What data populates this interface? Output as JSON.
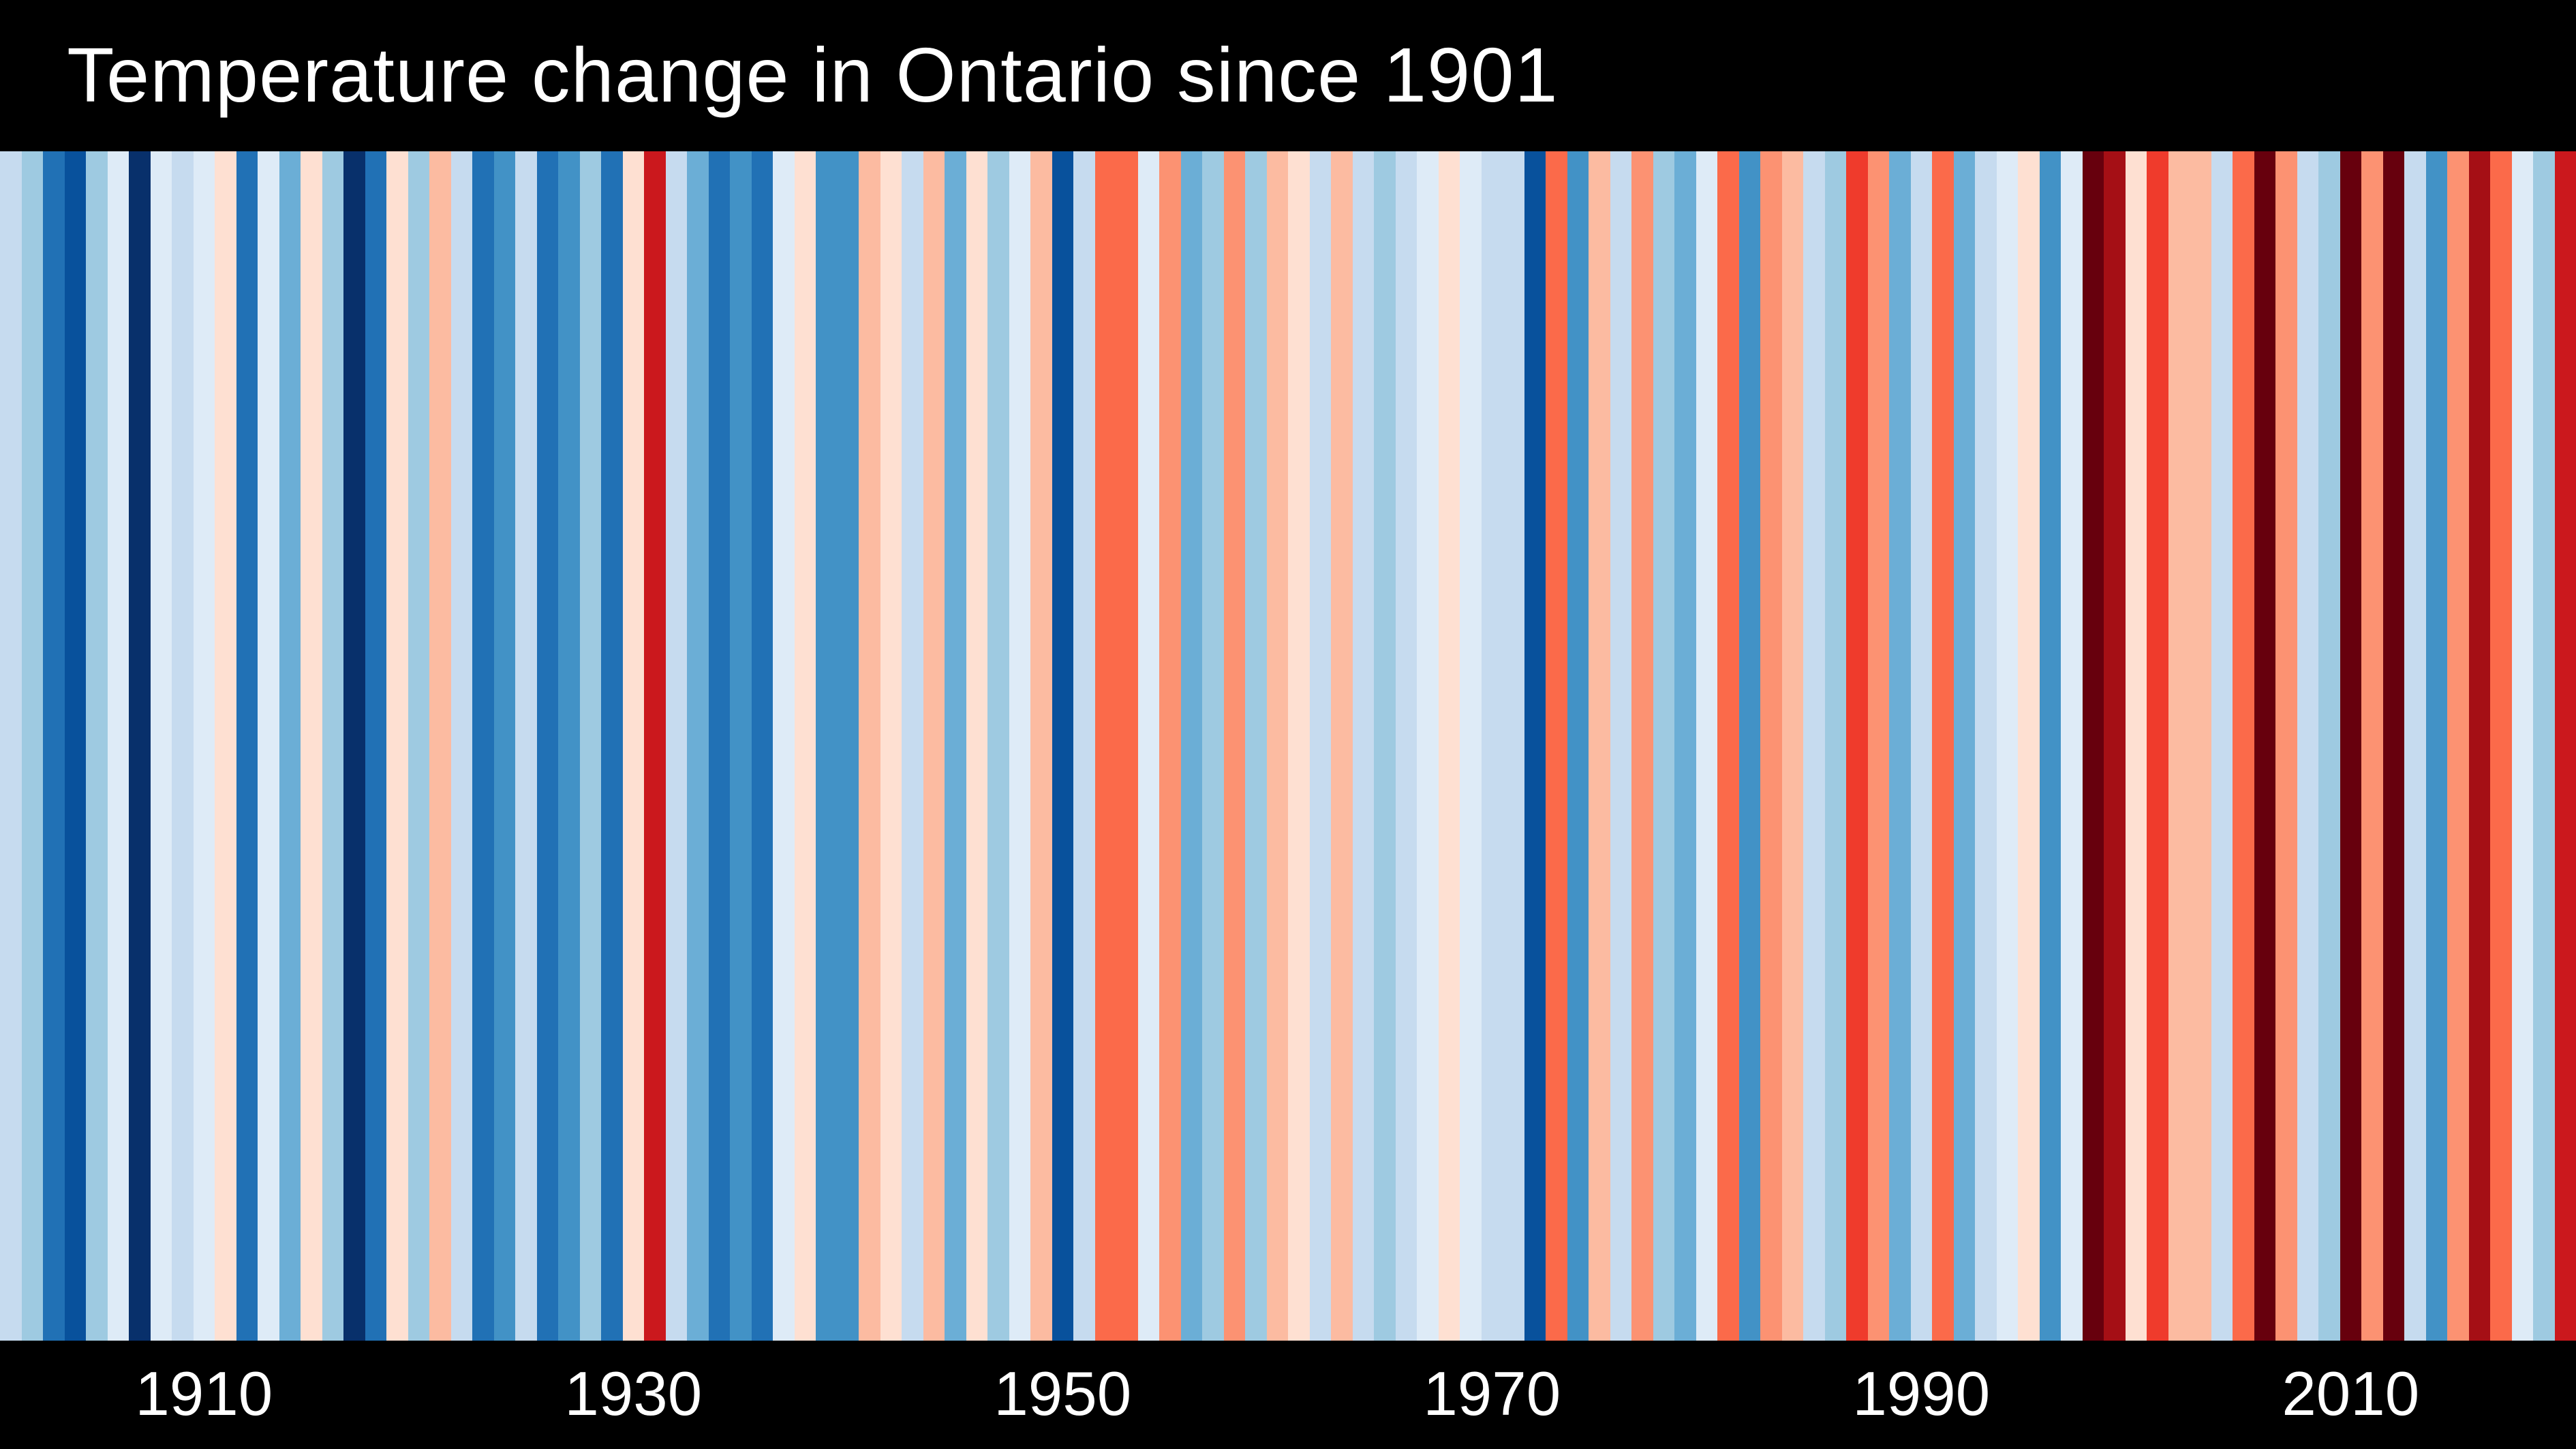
{
  "chart": {
    "type": "warming-stripes",
    "title": "Temperature change in Ontario since 1901",
    "title_color": "#ffffff",
    "title_fontsize_vw": 3.0,
    "background_color": "#000000",
    "stripe_area_flex": 1,
    "start_year": 1901,
    "end_year": 2020,
    "axis_ticks": [
      {
        "year": 1910,
        "label": "1910"
      },
      {
        "year": 1930,
        "label": "1930"
      },
      {
        "year": 1950,
        "label": "1950"
      },
      {
        "year": 1970,
        "label": "1970"
      },
      {
        "year": 1990,
        "label": "1990"
      },
      {
        "year": 2010,
        "label": "2010"
      }
    ],
    "axis_label_color": "#ffffff",
    "axis_label_fontsize_vw": 2.4,
    "palette": {
      "-8": "#08306b",
      "-7": "#08519c",
      "-6": "#2171b5",
      "-5": "#4292c6",
      "-4": "#6baed6",
      "-3": "#9ecae1",
      "-2": "#c6dbef",
      "-1": "#deebf7",
      "1": "#fee0d2",
      "2": "#fcbba1",
      "3": "#fc9272",
      "4": "#fb6a4a",
      "5": "#ef3b2c",
      "6": "#cb181d",
      "7": "#a50f15",
      "8": "#67000d"
    },
    "stripes": [
      {
        "year": 1901,
        "level": -2,
        "color": "#c6dbef"
      },
      {
        "year": 1902,
        "level": -3,
        "color": "#9ecae1"
      },
      {
        "year": 1903,
        "level": -6,
        "color": "#2171b5"
      },
      {
        "year": 1904,
        "level": -7,
        "color": "#08519c"
      },
      {
        "year": 1905,
        "level": -3,
        "color": "#9ecae1"
      },
      {
        "year": 1906,
        "level": -1,
        "color": "#deebf7"
      },
      {
        "year": 1907,
        "level": -8,
        "color": "#08306b"
      },
      {
        "year": 1908,
        "level": -1,
        "color": "#deebf7"
      },
      {
        "year": 1909,
        "level": -2,
        "color": "#c6dbef"
      },
      {
        "year": 1910,
        "level": -1,
        "color": "#deebf7"
      },
      {
        "year": 1911,
        "level": 1,
        "color": "#fee0d2"
      },
      {
        "year": 1912,
        "level": -6,
        "color": "#2171b5"
      },
      {
        "year": 1913,
        "level": -1,
        "color": "#deebf7"
      },
      {
        "year": 1914,
        "level": -4,
        "color": "#6baed6"
      },
      {
        "year": 1915,
        "level": 1,
        "color": "#fee0d2"
      },
      {
        "year": 1916,
        "level": -3,
        "color": "#9ecae1"
      },
      {
        "year": 1917,
        "level": -8,
        "color": "#08306b"
      },
      {
        "year": 1918,
        "level": -6,
        "color": "#2171b5"
      },
      {
        "year": 1919,
        "level": 1,
        "color": "#fee0d2"
      },
      {
        "year": 1920,
        "level": -3,
        "color": "#9ecae1"
      },
      {
        "year": 1921,
        "level": 2,
        "color": "#fcbba1"
      },
      {
        "year": 1922,
        "level": -2,
        "color": "#c6dbef"
      },
      {
        "year": 1923,
        "level": -6,
        "color": "#2171b5"
      },
      {
        "year": 1924,
        "level": -5,
        "color": "#4292c6"
      },
      {
        "year": 1925,
        "level": -2,
        "color": "#c6dbef"
      },
      {
        "year": 1926,
        "level": -6,
        "color": "#2171b5"
      },
      {
        "year": 1927,
        "level": -5,
        "color": "#4292c6"
      },
      {
        "year": 1928,
        "level": -3,
        "color": "#9ecae1"
      },
      {
        "year": 1929,
        "level": -6,
        "color": "#2171b5"
      },
      {
        "year": 1930,
        "level": 1,
        "color": "#fee0d2"
      },
      {
        "year": 1931,
        "level": 6,
        "color": "#cb181d"
      },
      {
        "year": 1932,
        "level": -2,
        "color": "#c6dbef"
      },
      {
        "year": 1933,
        "level": -4,
        "color": "#6baed6"
      },
      {
        "year": 1934,
        "level": -6,
        "color": "#2171b5"
      },
      {
        "year": 1935,
        "level": -5,
        "color": "#4292c6"
      },
      {
        "year": 1936,
        "level": -6,
        "color": "#2171b5"
      },
      {
        "year": 1937,
        "level": -1,
        "color": "#deebf7"
      },
      {
        "year": 1938,
        "level": 1,
        "color": "#fee0d2"
      },
      {
        "year": 1939,
        "level": -5,
        "color": "#4292c6"
      },
      {
        "year": 1940,
        "level": -5,
        "color": "#4292c6"
      },
      {
        "year": 1941,
        "level": 2,
        "color": "#fcbba1"
      },
      {
        "year": 1942,
        "level": 1,
        "color": "#fee0d2"
      },
      {
        "year": 1943,
        "level": -2,
        "color": "#c6dbef"
      },
      {
        "year": 1944,
        "level": 2,
        "color": "#fcbba1"
      },
      {
        "year": 1945,
        "level": -4,
        "color": "#6baed6"
      },
      {
        "year": 1946,
        "level": 1,
        "color": "#fee0d2"
      },
      {
        "year": 1947,
        "level": -3,
        "color": "#9ecae1"
      },
      {
        "year": 1948,
        "level": -1,
        "color": "#deebf7"
      },
      {
        "year": 1949,
        "level": 2,
        "color": "#fcbba1"
      },
      {
        "year": 1950,
        "level": -7,
        "color": "#08519c"
      },
      {
        "year": 1951,
        "level": -2,
        "color": "#c6dbef"
      },
      {
        "year": 1952,
        "level": 4,
        "color": "#fb6a4a"
      },
      {
        "year": 1953,
        "level": 4,
        "color": "#fb6a4a"
      },
      {
        "year": 1954,
        "level": -1,
        "color": "#deebf7"
      },
      {
        "year": 1955,
        "level": 3,
        "color": "#fc9272"
      },
      {
        "year": 1956,
        "level": -4,
        "color": "#6baed6"
      },
      {
        "year": 1957,
        "level": -3,
        "color": "#9ecae1"
      },
      {
        "year": 1958,
        "level": 3,
        "color": "#fc9272"
      },
      {
        "year": 1959,
        "level": -3,
        "color": "#9ecae1"
      },
      {
        "year": 1960,
        "level": 2,
        "color": "#fcbba1"
      },
      {
        "year": 1961,
        "level": 1,
        "color": "#fee0d2"
      },
      {
        "year": 1962,
        "level": -2,
        "color": "#c6dbef"
      },
      {
        "year": 1963,
        "level": 2,
        "color": "#fcbba1"
      },
      {
        "year": 1964,
        "level": -2,
        "color": "#c6dbef"
      },
      {
        "year": 1965,
        "level": -3,
        "color": "#9ecae1"
      },
      {
        "year": 1966,
        "level": -2,
        "color": "#c6dbef"
      },
      {
        "year": 1967,
        "level": -1,
        "color": "#deebf7"
      },
      {
        "year": 1968,
        "level": 1,
        "color": "#fee0d2"
      },
      {
        "year": 1969,
        "level": -1,
        "color": "#deebf7"
      },
      {
        "year": 1970,
        "level": -2,
        "color": "#c6dbef"
      },
      {
        "year": 1971,
        "level": -2,
        "color": "#c6dbef"
      },
      {
        "year": 1972,
        "level": -7,
        "color": "#08519c"
      },
      {
        "year": 1973,
        "level": 4,
        "color": "#fb6a4a"
      },
      {
        "year": 1974,
        "level": -5,
        "color": "#4292c6"
      },
      {
        "year": 1975,
        "level": 2,
        "color": "#fcbba1"
      },
      {
        "year": 1976,
        "level": -2,
        "color": "#c6dbef"
      },
      {
        "year": 1977,
        "level": 3,
        "color": "#fc9272"
      },
      {
        "year": 1978,
        "level": -3,
        "color": "#9ecae1"
      },
      {
        "year": 1979,
        "level": -4,
        "color": "#6baed6"
      },
      {
        "year": 1980,
        "level": -1,
        "color": "#deebf7"
      },
      {
        "year": 1981,
        "level": 4,
        "color": "#fb6a4a"
      },
      {
        "year": 1982,
        "level": -5,
        "color": "#4292c6"
      },
      {
        "year": 1983,
        "level": 3,
        "color": "#fc9272"
      },
      {
        "year": 1984,
        "level": 2,
        "color": "#fcbba1"
      },
      {
        "year": 1985,
        "level": -2,
        "color": "#c6dbef"
      },
      {
        "year": 1986,
        "level": -3,
        "color": "#9ecae1"
      },
      {
        "year": 1987,
        "level": 5,
        "color": "#ef3b2c"
      },
      {
        "year": 1988,
        "level": 3,
        "color": "#fc9272"
      },
      {
        "year": 1989,
        "level": -4,
        "color": "#6baed6"
      },
      {
        "year": 1990,
        "level": -2,
        "color": "#c6dbef"
      },
      {
        "year": 1991,
        "level": 4,
        "color": "#fb6a4a"
      },
      {
        "year": 1992,
        "level": -4,
        "color": "#6baed6"
      },
      {
        "year": 1993,
        "level": -2,
        "color": "#c6dbef"
      },
      {
        "year": 1994,
        "level": -1,
        "color": "#deebf7"
      },
      {
        "year": 1995,
        "level": 1,
        "color": "#fee0d2"
      },
      {
        "year": 1996,
        "level": -5,
        "color": "#4292c6"
      },
      {
        "year": 1997,
        "level": -1,
        "color": "#deebf7"
      },
      {
        "year": 1998,
        "level": 8,
        "color": "#67000d"
      },
      {
        "year": 1999,
        "level": 7,
        "color": "#a50f15"
      },
      {
        "year": 2000,
        "level": 1,
        "color": "#fee0d2"
      },
      {
        "year": 2001,
        "level": 5,
        "color": "#ef3b2c"
      },
      {
        "year": 2002,
        "level": 2,
        "color": "#fcbba1"
      },
      {
        "year": 2003,
        "level": 2,
        "color": "#fcbba1"
      },
      {
        "year": 2004,
        "level": -2,
        "color": "#c6dbef"
      },
      {
        "year": 2005,
        "level": 4,
        "color": "#fb6a4a"
      },
      {
        "year": 2006,
        "level": 8,
        "color": "#67000d"
      },
      {
        "year": 2007,
        "level": 3,
        "color": "#fc9272"
      },
      {
        "year": 2008,
        "level": -2,
        "color": "#c6dbef"
      },
      {
        "year": 2009,
        "level": -3,
        "color": "#9ecae1"
      },
      {
        "year": 2010,
        "level": 8,
        "color": "#67000d"
      },
      {
        "year": 2011,
        "level": 3,
        "color": "#fc9272"
      },
      {
        "year": 2012,
        "level": 8,
        "color": "#67000d"
      },
      {
        "year": 2013,
        "level": -2,
        "color": "#c6dbef"
      },
      {
        "year": 2014,
        "level": -5,
        "color": "#4292c6"
      },
      {
        "year": 2015,
        "level": 3,
        "color": "#fc9272"
      },
      {
        "year": 2016,
        "level": 7,
        "color": "#a50f15"
      },
      {
        "year": 2017,
        "level": 4,
        "color": "#fb6a4a"
      },
      {
        "year": 2018,
        "level": -1,
        "color": "#deebf7"
      },
      {
        "year": 2019,
        "level": -3,
        "color": "#9ecae1"
      },
      {
        "year": 2020,
        "level": 6,
        "color": "#cb181d"
      }
    ]
  }
}
